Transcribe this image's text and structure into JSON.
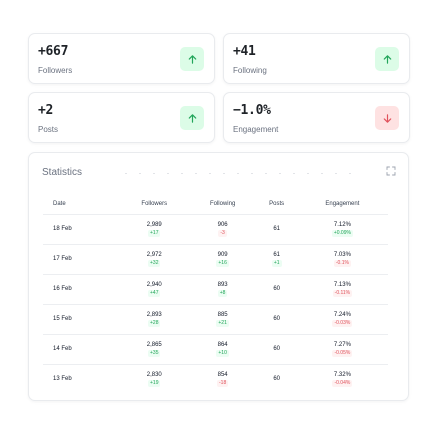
{
  "stats": [
    {
      "value": "+667",
      "label": "Followers",
      "trend": "up"
    },
    {
      "value": "+41",
      "label": "Following",
      "trend": "up"
    },
    {
      "value": "+2",
      "label": "Posts",
      "trend": "up"
    },
    {
      "value": "−1.0%",
      "label": "Engagement",
      "trend": "down"
    }
  ],
  "statistics": {
    "title": "Statistics",
    "headers": [
      "Date",
      "Followers",
      "Following",
      "Posts",
      "Engagement"
    ],
    "rows": [
      {
        "date": "18 Feb",
        "followers": "2,989",
        "followers_chg": "+17",
        "following": "906",
        "following_chg": "-3",
        "posts": "61",
        "posts_chg": "",
        "engagement": "7.12%",
        "engagement_chg": "+0.09%"
      },
      {
        "date": "17 Feb",
        "followers": "2,972",
        "followers_chg": "+32",
        "following": "909",
        "following_chg": "+16",
        "posts": "61",
        "posts_chg": "+1",
        "engagement": "7.03%",
        "engagement_chg": "-0.1%"
      },
      {
        "date": "16 Feb",
        "followers": "2,940",
        "followers_chg": "+47",
        "following": "893",
        "following_chg": "+8",
        "posts": "60",
        "posts_chg": "",
        "engagement": "7.13%",
        "engagement_chg": "-0.11%"
      },
      {
        "date": "15 Feb",
        "followers": "2,893",
        "followers_chg": "+28",
        "following": "885",
        "following_chg": "+21",
        "posts": "60",
        "posts_chg": "",
        "engagement": "7.24%",
        "engagement_chg": "-0.03%"
      },
      {
        "date": "14 Feb",
        "followers": "2,865",
        "followers_chg": "+35",
        "following": "864",
        "following_chg": "+10",
        "posts": "60",
        "posts_chg": "",
        "engagement": "7.27%",
        "engagement_chg": "-0.05%"
      },
      {
        "date": "13 Feb",
        "followers": "2,830",
        "followers_chg": "+19",
        "following": "854",
        "following_chg": "-18",
        "posts": "60",
        "posts_chg": "",
        "engagement": "7.32%",
        "engagement_chg": "-0.04%"
      }
    ]
  },
  "colors": {
    "positive": "#22a55a",
    "negative": "#e0525c"
  },
  "icons": {
    "up": "arrow-up-icon",
    "down": "arrow-down-icon",
    "expand": "expand-icon"
  }
}
